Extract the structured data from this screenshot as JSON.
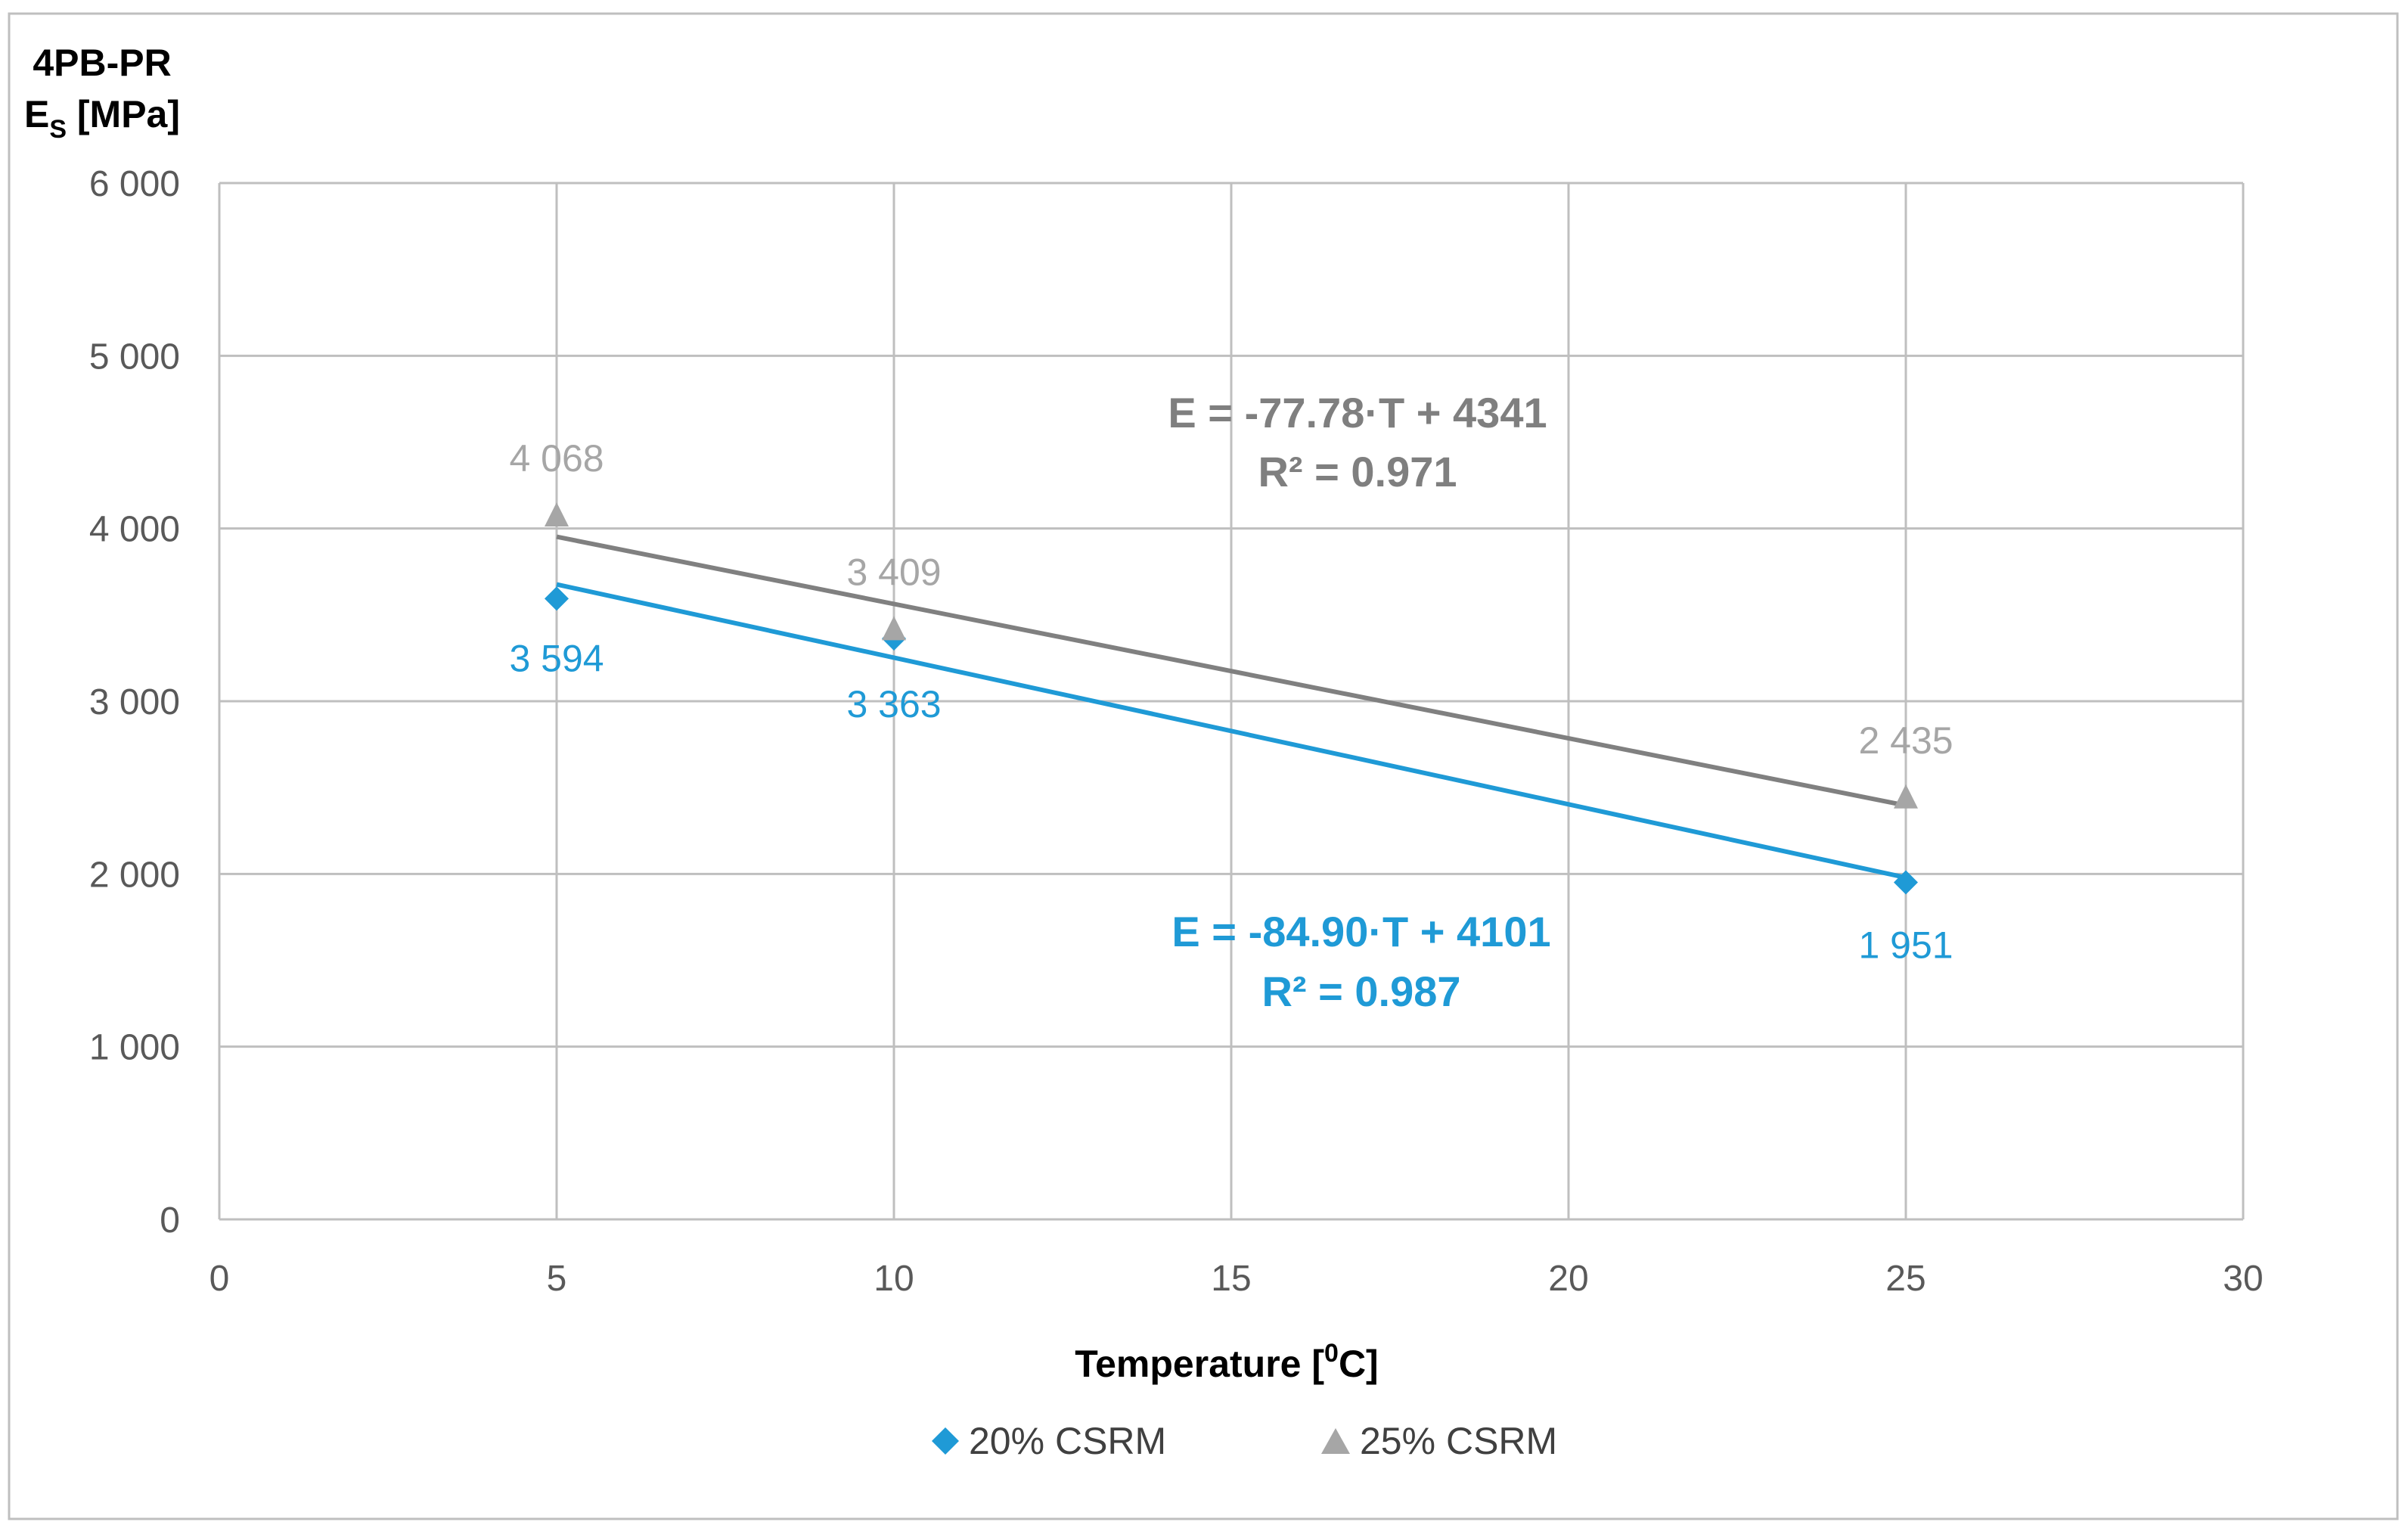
{
  "chart_data": {
    "type": "scatter",
    "title": "",
    "ylabel_line1": "4PB-PR",
    "ylabel_line2_main": "E",
    "ylabel_line2_sub": "S",
    "ylabel_line2_unit": " [MPa]",
    "xlabel_main": "Temperature [",
    "xlabel_sup": "0",
    "xlabel_tail": "C]",
    "xlim": [
      0,
      30
    ],
    "ylim": [
      0,
      6000
    ],
    "xticks": [
      0,
      5,
      10,
      15,
      20,
      25,
      30
    ],
    "yticks": [
      0,
      1000,
      2000,
      3000,
      4000,
      5000,
      6000
    ],
    "ytick_labels": [
      "0",
      "1 000",
      "2 000",
      "3 000",
      "4 000",
      "5 000",
      "6 000"
    ],
    "grid": true,
    "legend_position": "bottom",
    "series": [
      {
        "name": "20% CSRM",
        "color": "#1f9ad6",
        "marker": "diamond",
        "x": [
          5,
          10,
          25
        ],
        "y": [
          3594,
          3363,
          1951
        ],
        "labels": [
          "3 594",
          "3 363",
          "1 951"
        ],
        "trend": {
          "slope": -84.9,
          "intercept": 4101,
          "x_range": [
            5,
            25
          ]
        },
        "equation": "E = -84.90·T + 4101",
        "r2": "R² = 0.987"
      },
      {
        "name": "25% CSRM",
        "color": "#a6a6a6",
        "line_color": "#808080",
        "marker": "triangle",
        "x": [
          5,
          10,
          25
        ],
        "y": [
          4068,
          3409,
          2435
        ],
        "labels": [
          "4 068",
          "3 409",
          "2 435"
        ],
        "trend": {
          "slope": -77.78,
          "intercept": 4341,
          "x_range": [
            5,
            25
          ]
        },
        "equation": "E = -77.78·T + 4341",
        "r2": "R² = 0.971"
      }
    ]
  }
}
